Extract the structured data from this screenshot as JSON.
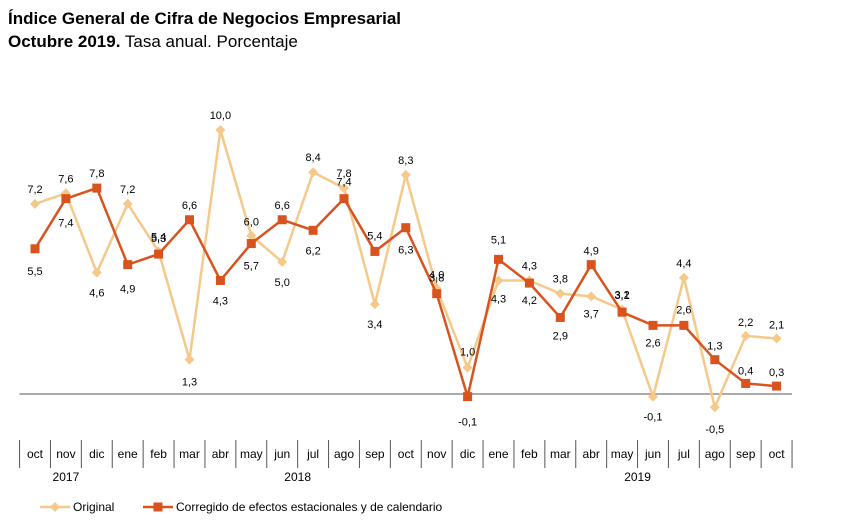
{
  "header": {
    "title": "Índice General de Cifra de Negocios Empresarial",
    "subtitle_bold": "Octubre 2019.",
    "subtitle_rest": " Tasa anual. Porcentaje"
  },
  "colors": {
    "original": "#f5c98a",
    "corregido": "#d9531e",
    "axis": "#555555"
  },
  "chart_data": {
    "type": "line",
    "title": "Índice General de Cifra de Negocios Empresarial",
    "categories": [
      "oct",
      "nov",
      "dic",
      "ene",
      "feb",
      "mar",
      "abr",
      "may",
      "jun",
      "jul",
      "ago",
      "sep",
      "oct",
      "nov",
      "dic",
      "ene",
      "feb",
      "mar",
      "abr",
      "may",
      "jun",
      "jul",
      "ago",
      "sep",
      "oct"
    ],
    "year_groups": [
      {
        "label": "2017",
        "start": 0,
        "end": 2
      },
      {
        "label": "2018",
        "start": 3,
        "end": 14
      },
      {
        "label": "2019",
        "start": 15,
        "end": 24
      }
    ],
    "ylim": [
      -0.5,
      10.5
    ],
    "series": [
      {
        "name": "Original",
        "values": [
          7.2,
          7.6,
          4.6,
          7.2,
          5.4,
          1.3,
          10.0,
          6.0,
          5.0,
          8.4,
          7.8,
          3.4,
          8.3,
          4.0,
          1.0,
          4.3,
          4.3,
          3.8,
          3.7,
          3.2,
          -0.1,
          4.4,
          -0.5,
          2.2,
          2.1
        ],
        "labels": [
          "7,2",
          "7,6",
          "4,6",
          "7,2",
          "5,4",
          "1,3",
          "10,0",
          "6,0",
          "5,0",
          "8,4",
          "7,8",
          "3,4",
          "8,3",
          "4,0",
          "1,0",
          "4,3",
          "4,3",
          "3,8",
          "3,7",
          "3,2",
          "-0,1",
          "4,4",
          "-0,5",
          "2,2",
          "2,1"
        ]
      },
      {
        "name": "Corregido de efectos estacionales y de calendario",
        "values": [
          5.5,
          7.4,
          7.8,
          4.9,
          5.3,
          6.6,
          4.3,
          5.7,
          6.6,
          6.2,
          7.4,
          5.4,
          6.3,
          3.8,
          -0.1,
          5.1,
          4.2,
          2.9,
          4.9,
          3.1,
          2.6,
          2.6,
          1.3,
          0.4,
          0.3
        ],
        "labels": [
          "5,5",
          "7,4",
          "7,8",
          "4,9",
          "5,3",
          "6,6",
          "4,3",
          "5,7",
          "6,6",
          "6,2",
          "7,4",
          "5,4",
          "6,3",
          "3,8",
          "-0,1",
          "5,1",
          "4,2",
          "2,9",
          "4,9",
          "3,1",
          "2,6",
          "2,6",
          "1,3",
          "0,4",
          "0,3"
        ]
      }
    ],
    "legend": [
      "Original",
      "Corregido de efectos estacionales y de calendario"
    ]
  }
}
